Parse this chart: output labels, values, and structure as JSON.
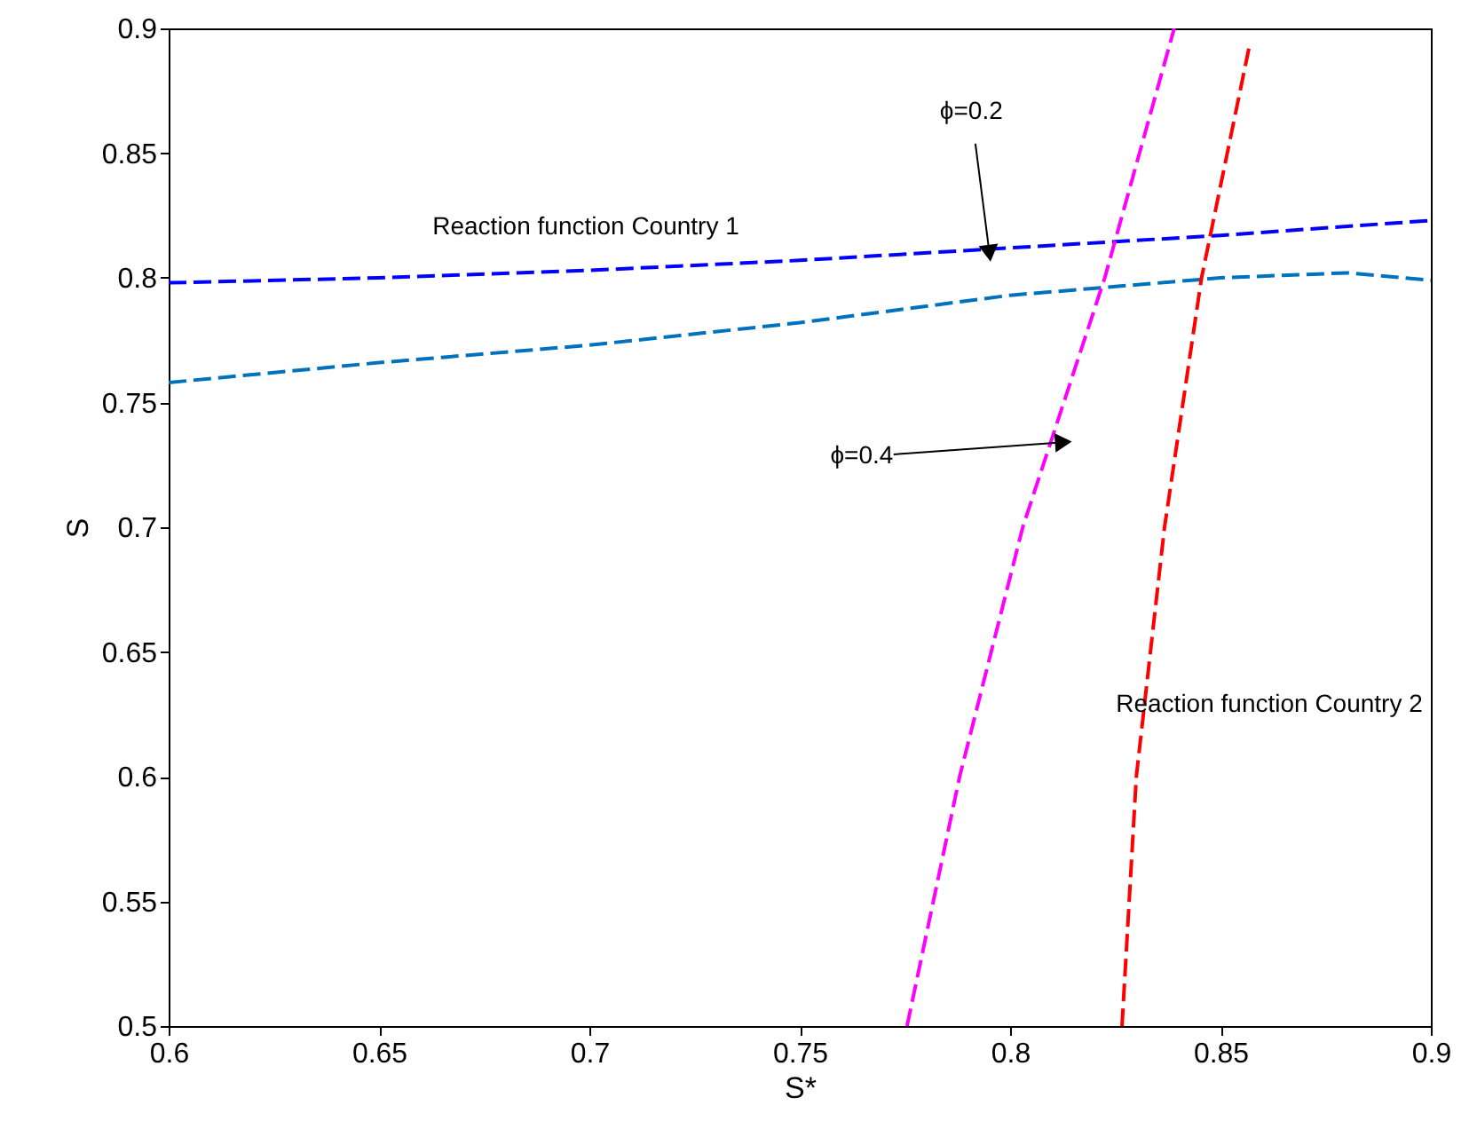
{
  "chart_data": {
    "type": "line",
    "xlabel": "S*",
    "ylabel": "S",
    "xlim": [
      0.6,
      0.9
    ],
    "ylim": [
      0.5,
      0.9
    ],
    "xticks": [
      0.6,
      0.65,
      0.7,
      0.75,
      0.8,
      0.85,
      0.9
    ],
    "yticks": [
      0.5,
      0.55,
      0.6,
      0.65,
      0.7,
      0.75,
      0.8,
      0.85,
      0.9
    ],
    "grid": false,
    "line_style": "dashed",
    "series": [
      {
        "color": "#0000ff",
        "x": [
          0.6,
          0.65,
          0.7,
          0.75,
          0.8,
          0.85,
          0.9
        ],
        "values": [
          0.798,
          0.8,
          0.803,
          0.807,
          0.812,
          0.817,
          0.823
        ]
      },
      {
        "color": "#0072bd",
        "x": [
          0.6,
          0.65,
          0.7,
          0.75,
          0.8,
          0.85,
          0.88,
          0.9
        ],
        "values": [
          0.758,
          0.766,
          0.773,
          0.782,
          0.793,
          0.8,
          0.802,
          0.799
        ]
      },
      {
        "color": "#ff00ff",
        "x": [
          0.7755,
          0.788,
          0.803,
          0.8225,
          0.839
        ],
        "values": [
          0.5,
          0.6,
          0.7,
          0.8,
          0.9
        ]
      },
      {
        "color": "#ff0000",
        "x": [
          0.8266,
          0.83,
          0.8367,
          0.8455,
          0.857
        ],
        "values": [
          0.5,
          0.6,
          0.7,
          0.8,
          0.894
        ]
      }
    ],
    "annotations": [
      "Reaction function Country 1",
      "Reaction function Country 2",
      {
        "text": "ϕ=0.2",
        "x": 0.795,
        "y": 0.811
      },
      {
        "text": "ϕ=0.4",
        "x": 0.812,
        "y": 0.734
      }
    ]
  }
}
